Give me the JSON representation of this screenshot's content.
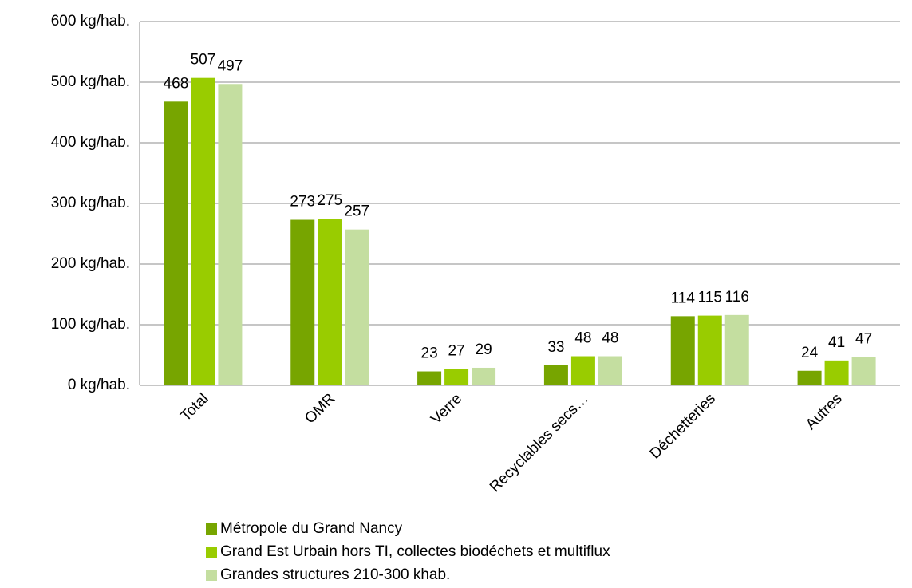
{
  "chart_data": {
    "type": "bar",
    "categories": [
      "Total",
      "OMR",
      "Verre",
      "Recyclables secs…",
      "Déchetteries",
      "Autres"
    ],
    "series": [
      {
        "name": "Métropole du Grand Nancy",
        "color": "#77a500",
        "values": [
          468,
          273,
          23,
          33,
          114,
          24
        ]
      },
      {
        "name": "Grand Est Urbain hors TI, collectes biodéchets et multiflux",
        "color": "#99cc00",
        "values": [
          507,
          275,
          27,
          48,
          115,
          41
        ]
      },
      {
        "name": "Grandes structures 210-300 khab.",
        "color": "#c4dea0",
        "values": [
          497,
          257,
          29,
          48,
          116,
          47
        ]
      }
    ],
    "ylim": [
      0,
      600
    ],
    "yticks": [
      {
        "value": 0,
        "label": "0 kg/hab."
      },
      {
        "value": 100,
        "label": "100 kg/hab."
      },
      {
        "value": 200,
        "label": "200 kg/hab."
      },
      {
        "value": 300,
        "label": "300 kg/hab."
      },
      {
        "value": 400,
        "label": "400 kg/hab."
      },
      {
        "value": 500,
        "label": "500 kg/hab."
      },
      {
        "value": 600,
        "label": "600 kg/hab."
      }
    ],
    "grid": true,
    "legend": "bottom"
  }
}
